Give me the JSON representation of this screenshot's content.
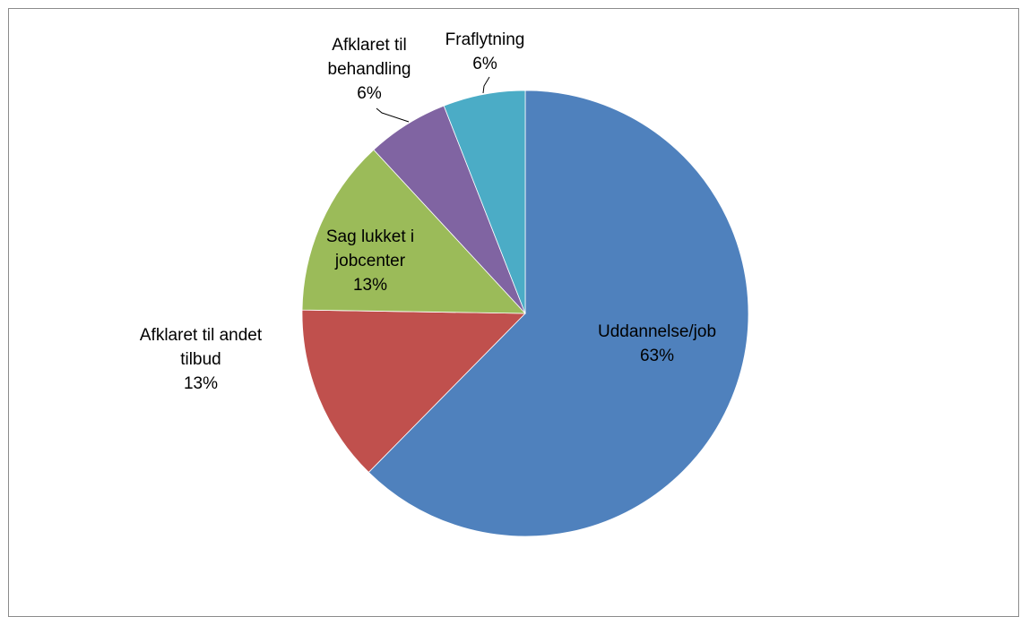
{
  "chart_data": {
    "type": "pie",
    "title": "",
    "start_angle_deg": 0,
    "direction": "clockwise",
    "slices": [
      {
        "name": "Uddannelse/job",
        "value": 63,
        "label_text": "63%",
        "color": "#4f81bd"
      },
      {
        "name": "Afklaret til andet tilbud",
        "value": 13,
        "label_text": "13%",
        "color": "#c0504d"
      },
      {
        "name": "Sag lukket i jobcenter",
        "value": 13,
        "label_text": "13%",
        "color": "#9bbb59"
      },
      {
        "name": "Afklaret til behandling",
        "value": 6,
        "label_text": "6%",
        "color": "#8064a2"
      },
      {
        "name": "Fraflytning",
        "value": 6,
        "label_text": "6%",
        "color": "#4bacc6"
      }
    ],
    "legend": "none"
  }
}
